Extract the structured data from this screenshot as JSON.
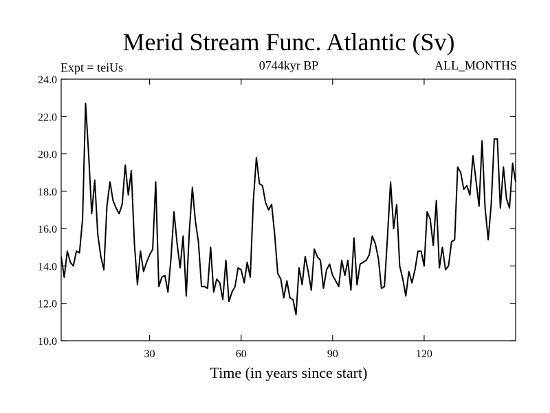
{
  "chart_data": {
    "type": "line",
    "title": "Merid Stream Func. Atlantic (Sv)",
    "subtitle_left": "Expt = teiUs",
    "subtitle_center": "0744kyr BP",
    "subtitle_right": "ALL_MONTHS",
    "xlabel": "Time (in years since start)",
    "ylabel": "",
    "xlim": [
      1,
      150
    ],
    "ylim": [
      10.0,
      24.0
    ],
    "xticks": [
      30,
      60,
      90,
      120
    ],
    "xtick_labels": [
      "30",
      "60",
      "90",
      "120"
    ],
    "yticks": [
      10,
      12,
      14,
      16,
      18,
      20,
      22,
      24
    ],
    "ytick_labels": [
      "10.0",
      "12.0",
      "14.0",
      "16.0",
      "18.0",
      "20.0",
      "22.0",
      "24.0"
    ],
    "grid": false,
    "series": [
      {
        "name": "Merid Stream Func. Atlantic",
        "x": [
          1,
          2,
          3,
          4,
          5,
          6,
          7,
          8,
          9,
          10,
          11,
          12,
          13,
          14,
          15,
          16,
          17,
          18,
          19,
          20,
          21,
          22,
          23,
          24,
          25,
          26,
          27,
          28,
          29,
          30,
          31,
          32,
          33,
          34,
          35,
          36,
          37,
          38,
          39,
          40,
          41,
          42,
          43,
          44,
          45,
          46,
          47,
          48,
          49,
          50,
          51,
          52,
          53,
          54,
          55,
          56,
          57,
          58,
          59,
          60,
          61,
          62,
          63,
          64,
          65,
          66,
          67,
          68,
          69,
          70,
          71,
          72,
          73,
          74,
          75,
          76,
          77,
          78,
          79,
          80,
          81,
          82,
          83,
          84,
          85,
          86,
          87,
          88,
          89,
          90,
          91,
          92,
          93,
          94,
          95,
          96,
          97,
          98,
          99,
          100,
          101,
          102,
          103,
          104,
          105,
          106,
          107,
          108,
          109,
          110,
          111,
          112,
          113,
          114,
          115,
          116,
          117,
          118,
          119,
          120,
          121,
          122,
          123,
          124,
          125,
          126,
          127,
          128,
          129,
          130,
          131,
          132,
          133,
          134,
          135,
          136,
          137,
          138,
          139,
          140,
          141,
          142,
          143,
          144,
          145,
          146,
          147,
          148,
          149,
          150
        ],
        "y": [
          14.5,
          13.4,
          14.8,
          14.2,
          14.0,
          14.8,
          14.7,
          16.5,
          22.7,
          20.0,
          16.8,
          18.6,
          15.7,
          14.5,
          13.8,
          17.2,
          18.5,
          17.5,
          17.1,
          16.8,
          17.3,
          19.4,
          17.8,
          19.1,
          15.2,
          13.0,
          14.8,
          13.7,
          14.2,
          14.6,
          14.9,
          18.5,
          12.9,
          13.4,
          13.5,
          12.6,
          14.4,
          16.9,
          15.2,
          13.9,
          15.6,
          12.4,
          15.8,
          18.2,
          16.4,
          15.3,
          12.9,
          12.9,
          12.8,
          15.0,
          12.6,
          13.3,
          13.1,
          12.2,
          14.3,
          12.1,
          12.6,
          12.9,
          13.9,
          13.8,
          13.1,
          14.2,
          13.4,
          17.5,
          19.8,
          18.4,
          18.3,
          17.4,
          17.0,
          17.3,
          15.7,
          13.6,
          13.3,
          12.3,
          13.2,
          12.3,
          12.2,
          11.4,
          13.9,
          13.0,
          14.5,
          13.7,
          12.7,
          14.9,
          14.5,
          14.3,
          12.8,
          13.8,
          14.1,
          13.5,
          13.2,
          12.9,
          14.3,
          13.5,
          14.3,
          12.7,
          15.5,
          13.0,
          14.1,
          14.2,
          14.3,
          14.6,
          15.6,
          15.2,
          14.4,
          12.8,
          12.9,
          15.6,
          18.5,
          16.0,
          17.3,
          14.0,
          13.3,
          12.4,
          13.7,
          13.1,
          13.8,
          14.8,
          14.8,
          14.0,
          16.9,
          16.5,
          15.1,
          17.5,
          13.9,
          15.0,
          13.8,
          14.0,
          15.3,
          15.4,
          19.3,
          19.0,
          18.1,
          18.3,
          17.8,
          19.9,
          18.6,
          17.2,
          20.7,
          17.1,
          15.4,
          17.3,
          20.8,
          20.8,
          17.1,
          19.3,
          17.6,
          17.1,
          19.5,
          18.5
        ]
      }
    ]
  }
}
